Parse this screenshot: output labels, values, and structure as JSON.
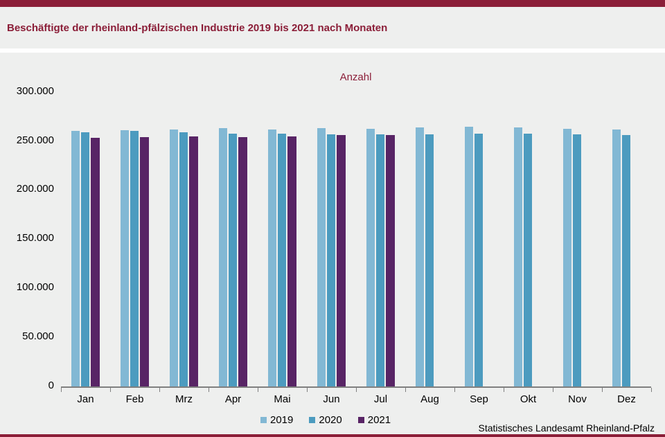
{
  "header": {
    "title": "Beschäftigte der rheinland-pfälzischen Industrie 2019 bis 2021 nach Monaten"
  },
  "footer": {
    "source": "Statistisches Landesamt Rheinland-Pfalz"
  },
  "colors": {
    "accent_red": "#8b1e38",
    "background": "#eeefee",
    "axis_gray": "#7f7f7f",
    "series_2019": "#82b8d4",
    "series_2020": "#4c9bbf",
    "series_2021": "#582465"
  },
  "chart_data": {
    "type": "bar",
    "title": "Anzahl",
    "xlabel": "",
    "ylabel": "Anzahl",
    "categories": [
      "Jan",
      "Feb",
      "Mrz",
      "Apr",
      "Mai",
      "Jun",
      "Jul",
      "Aug",
      "Sep",
      "Okt",
      "Nov",
      "Dez"
    ],
    "series": [
      {
        "name": "2019",
        "color_key": "series_2019",
        "values": [
          260100,
          260600,
          261800,
          262800,
          261800,
          262800,
          262300,
          263700,
          264200,
          263500,
          262300,
          261800
        ]
      },
      {
        "name": "2020",
        "color_key": "series_2020",
        "values": [
          258900,
          259900,
          258500,
          257500,
          257100,
          256400,
          256400,
          256800,
          257500,
          257100,
          256400,
          255700
        ]
      },
      {
        "name": "2021",
        "color_key": "series_2021",
        "values": [
          252900,
          253800,
          254300,
          254000,
          254300,
          255900,
          255900,
          null,
          null,
          null,
          null,
          null
        ]
      }
    ],
    "ylim": [
      0,
      300000
    ],
    "ytick_step": 50000,
    "ytick_labels": [
      "0",
      "50.000",
      "100.000",
      "150.000",
      "200.000",
      "250.000",
      "300.000"
    ],
    "grid": false,
    "legend_position": "bottom"
  }
}
